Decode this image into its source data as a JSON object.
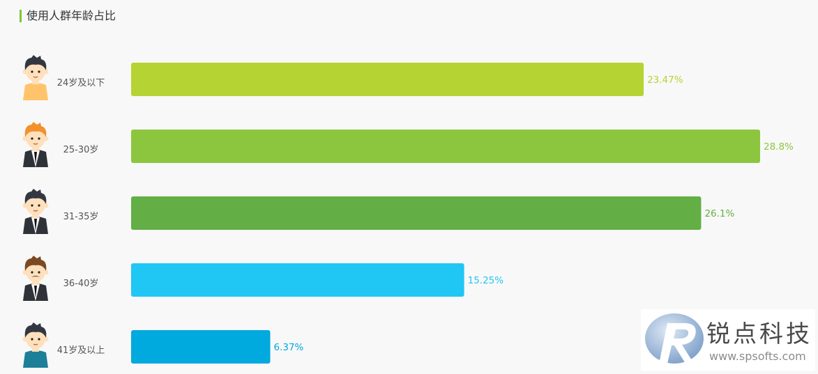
{
  "title": "使用人群年龄占比",
  "chart_data": {
    "type": "bar",
    "orientation": "horizontal",
    "title": "使用人群年龄占比",
    "categories": [
      "24岁及以下",
      "25-30岁",
      "31-35岁",
      "36-40岁",
      "41岁及以上"
    ],
    "values": [
      23.47,
      28.8,
      26.1,
      15.25,
      6.37
    ],
    "value_labels": [
      "23.47%",
      "28.8%",
      "26.1%",
      "15.25%",
      "6.37%"
    ],
    "colors": [
      "#b5d433",
      "#8cc63f",
      "#63af46",
      "#20c7f4",
      "#00a9de"
    ],
    "avatars": [
      "young-man-avatar-icon",
      "orange-hair-man-avatar-icon",
      "suit-man-avatar-icon",
      "mustache-man-avatar-icon",
      "older-man-avatar-icon"
    ],
    "xlim": [
      0,
      28.8
    ],
    "grid": false,
    "legend": "none"
  },
  "watermark": {
    "name": "锐点科技",
    "url": "www.spsofts.com",
    "logo_icon": "rd-logo-icon"
  }
}
